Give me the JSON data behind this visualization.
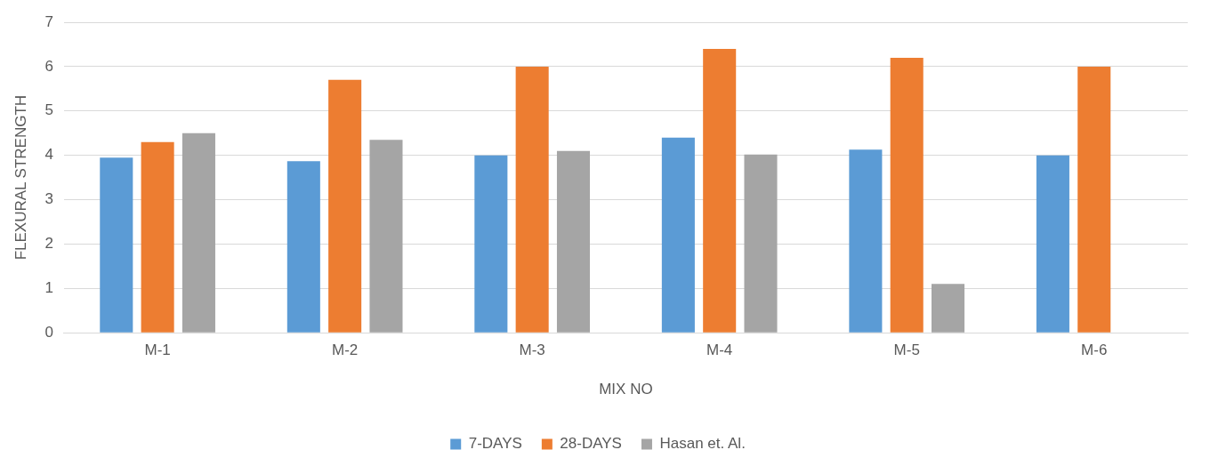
{
  "chart_data": {
    "type": "bar",
    "xlabel": "MIX NO",
    "ylabel": "FLEXURAL STRENGTH",
    "categories": [
      "M-1",
      "M-2",
      "M-3",
      "M-4",
      "M-5",
      "M-6"
    ],
    "series": [
      {
        "name": "7-DAYS",
        "color": "#5b9bd5",
        "values": [
          3.95,
          3.87,
          4.0,
          4.4,
          4.13,
          4.0
        ]
      },
      {
        "name": "28-DAYS",
        "color": "#ed7d31",
        "values": [
          4.3,
          5.7,
          6.0,
          6.4,
          6.2,
          6.0
        ]
      },
      {
        "name": "Hasan et. Al.",
        "color": "#a5a5a5",
        "values": [
          4.5,
          4.35,
          4.1,
          4.02,
          1.1,
          null
        ]
      }
    ],
    "ylim": [
      0,
      7
    ],
    "yticks": [
      0,
      1,
      2,
      3,
      4,
      5,
      6,
      7
    ],
    "grid": "y",
    "legend": "bottom"
  }
}
